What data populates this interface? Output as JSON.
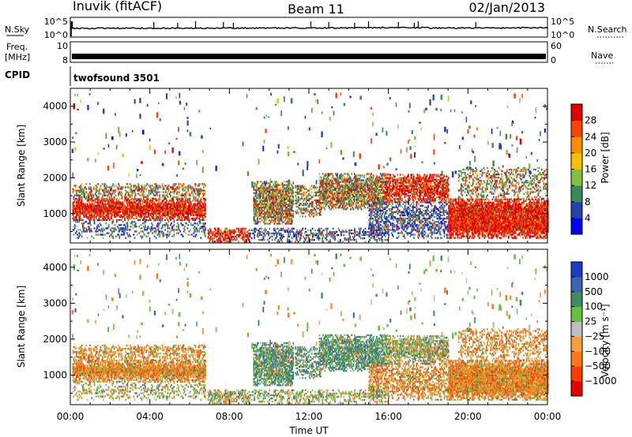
{
  "header": {
    "site": "Inuvik (fitACF)",
    "beam": "Beam 11",
    "date": "02/Jan/2013"
  },
  "noise_panel": {
    "left_label": "N.Sky",
    "left_ticks": [
      "10^5",
      "10^0"
    ],
    "right_label": "N.Search",
    "right_ticks": [
      "10^5",
      "10^0"
    ]
  },
  "freq_panel": {
    "left_label_1": "Freq.",
    "left_label_2": "[MHz]",
    "left_ticks": [
      "10",
      "8"
    ],
    "right_label": "Nave",
    "right_ticks": [
      "60",
      "0"
    ]
  },
  "cpid": {
    "label": "CPID",
    "value": "twofsound 3501"
  },
  "chart_data": [
    {
      "type": "heatmap",
      "panel": "power",
      "ylabel": "Slant Range [km]",
      "yticks": [
        1000,
        2000,
        3000,
        4000
      ],
      "ylim": [
        180,
        4500
      ],
      "xlim": [
        0,
        24
      ],
      "colorbar": {
        "label": "Power [dB]",
        "tick_labels": [
          "4",
          "8",
          "12",
          "16",
          "20",
          "24",
          "28"
        ],
        "colors": [
          "#0000ff",
          "#2244aa",
          "#3a8a5a",
          "#7fc241",
          "#f5c000",
          "#ff8c00",
          "#ff4400",
          "#e00000"
        ]
      }
    },
    {
      "type": "heatmap",
      "panel": "velocity",
      "ylabel": "Slant Range [km]",
      "yticks": [
        1000,
        2000,
        3000,
        4000
      ],
      "ylim": [
        180,
        4500
      ],
      "xlim": [
        0,
        24
      ],
      "xlabel": "Time UT",
      "xtick_labels": [
        "00:00",
        "04:00",
        "08:00",
        "12:00",
        "16:00",
        "20:00",
        "00:00"
      ],
      "colorbar": {
        "label": "Velocity [m s⁻¹]",
        "tick_labels": [
          "1000",
          "500",
          "100",
          "25",
          "−25",
          "−100",
          "−500",
          "−1000"
        ],
        "colors": [
          "#1e3cc0",
          "#3c62b4",
          "#3c8c64",
          "#66c23c",
          "#bebebe",
          "#f5a03c",
          "#ff7814",
          "#ff3c00",
          "#e60000"
        ]
      }
    }
  ]
}
